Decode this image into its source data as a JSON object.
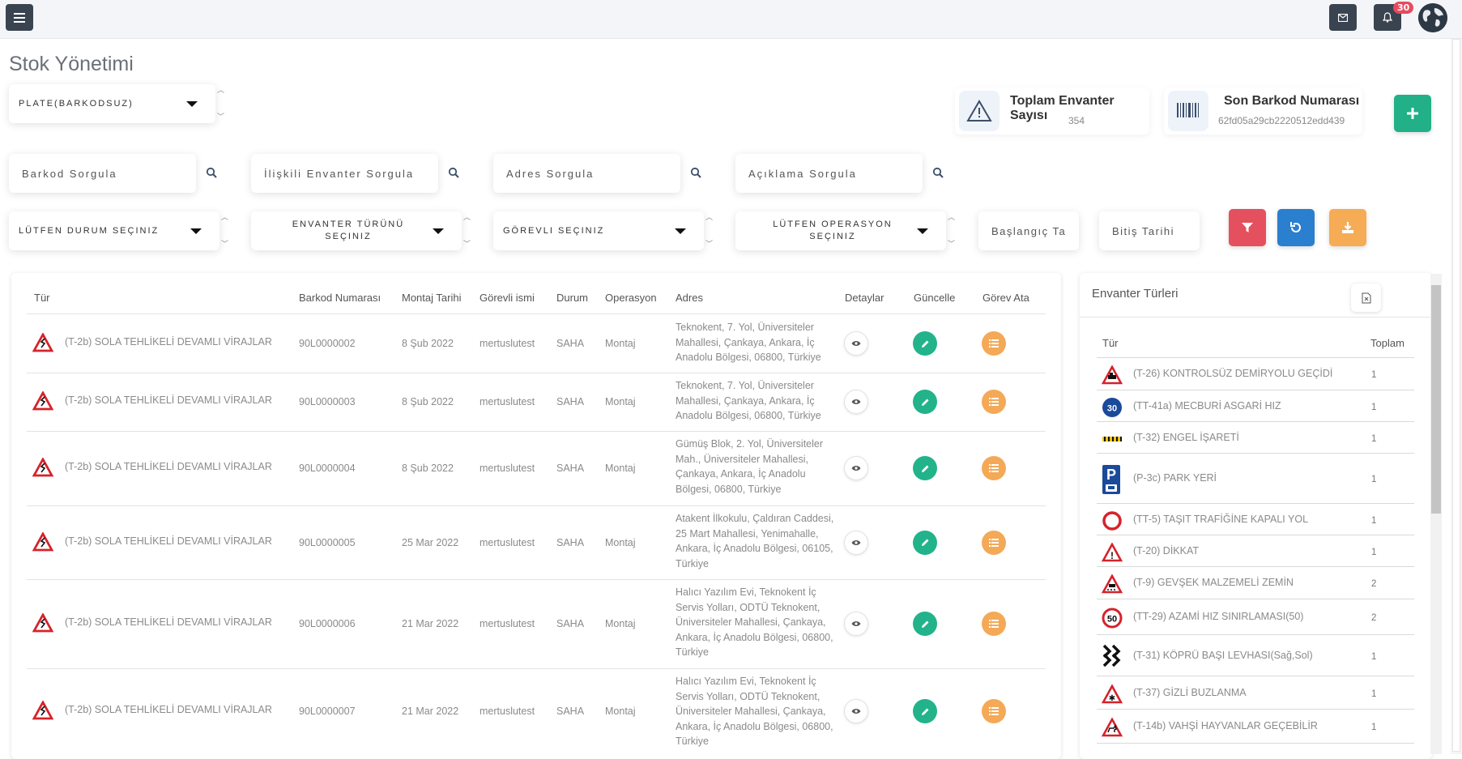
{
  "header": {
    "notification_count": "30"
  },
  "page_title": "Stok Yönetimi",
  "filters": {
    "plate_select": "PLATE(BARKODSUZ)",
    "durum_select": "LÜTFEN DURUM SEÇINIZ",
    "envanter_turu_select": "ENVANTER TÜRÜNÜ SEÇINIZ",
    "gorevli_select": "GÖREVLI SEÇINIZ",
    "operasyon_select": "LÜTFEN OPERASYON SEÇINIZ",
    "barkod_placeholder": "Barkod Sorgula",
    "iliskili_placeholder": "İlişkili Envanter Sorgula",
    "adres_placeholder": "Adres Sorgula",
    "aciklama_placeholder": "Açıklama Sorgula",
    "baslangic_placeholder": "Başlangıç Ta",
    "bitis_placeholder": "Bitiş Tarihi"
  },
  "stats": {
    "total_title": "Toplam Envanter Sayısı",
    "total_value": "354",
    "barcode_title": "Son Barkod Numarası",
    "barcode_value": "62fd05a29cb2220512edd439"
  },
  "colors": {
    "add": "#21b087",
    "filter": "#e5505f",
    "reset": "#2a7fce",
    "download": "#f5ac55"
  },
  "table": {
    "headers": [
      "Tür",
      "Barkod Numarası",
      "Montaj Tarihi",
      "Görevli ismi",
      "Durum",
      "Operasyon",
      "Adres",
      "Detaylar",
      "Güncelle",
      "Görev Ata"
    ],
    "rows": [
      {
        "tur": "(T-2b) SOLA TEHLİKELİ DEVAMLI VİRAJLAR",
        "barkod": "90L0000002",
        "tarih": "8 Şub 2022",
        "gorevli": "mertuslutest",
        "durum": "SAHA",
        "operasyon": "Montaj",
        "adres": "Teknokent, 7. Yol, Üniversiteler Mahallesi, Çankaya, Ankara, İç Anadolu Bölgesi, 06800, Türkiye"
      },
      {
        "tur": "(T-2b) SOLA TEHLİKELİ DEVAMLI VİRAJLAR",
        "barkod": "90L0000003",
        "tarih": "8 Şub 2022",
        "gorevli": "mertuslutest",
        "durum": "SAHA",
        "operasyon": "Montaj",
        "adres": "Teknokent, 7. Yol, Üniversiteler Mahallesi, Çankaya, Ankara, İç Anadolu Bölgesi, 06800, Türkiye"
      },
      {
        "tur": "(T-2b) SOLA TEHLİKELİ DEVAMLI VİRAJLAR",
        "barkod": "90L0000004",
        "tarih": "8 Şub 2022",
        "gorevli": "mertuslutest",
        "durum": "SAHA",
        "operasyon": "Montaj",
        "adres": "Gümüş Blok, 2. Yol, Üniversiteler Mah., Üniversiteler Mahallesi, Çankaya, Ankara, İç Anadolu Bölgesi, 06800, Türkiye"
      },
      {
        "tur": "(T-2b) SOLA TEHLİKELİ DEVAMLI VİRAJLAR",
        "barkod": "90L0000005",
        "tarih": "25 Mar 2022",
        "gorevli": "mertuslutest",
        "durum": "SAHA",
        "operasyon": "Montaj",
        "adres": "Atakent İlkokulu, Çaldıran Caddesi, 25 Mart Mahallesi, Yenimahalle, Ankara, İç Anadolu Bölgesi, 06105, Türkiye"
      },
      {
        "tur": "(T-2b) SOLA TEHLİKELİ DEVAMLI VİRAJLAR",
        "barkod": "90L0000006",
        "tarih": "21 Mar 2022",
        "gorevli": "mertuslutest",
        "durum": "SAHA",
        "operasyon": "Montaj",
        "adres": "Halıcı Yazılım Evi, Teknokent İç Servis Yolları, ODTÜ Teknokent, Üniversiteler Mahallesi, Çankaya, Ankara, İç Anadolu Bölgesi, 06800, Türkiye"
      },
      {
        "tur": "(T-2b) SOLA TEHLİKELİ DEVAMLI VİRAJLAR",
        "barkod": "90L0000007",
        "tarih": "21 Mar 2022",
        "gorevli": "mertuslutest",
        "durum": "SAHA",
        "operasyon": "Montaj",
        "adres": "Halıcı Yazılım Evi, Teknokent İç Servis Yolları, ODTÜ Teknokent, Üniversiteler Mahallesi, Çankaya, Ankara, İç Anadolu Bölgesi, 06800, Türkiye"
      }
    ]
  },
  "inventory_types": {
    "title": "Envanter Türleri",
    "headers": [
      "Tür",
      "Toplam"
    ],
    "items": [
      {
        "icon": "level-crossing-sign-icon",
        "label": "(T-26) KONTROLSÜZ DEMİRYOLU GEÇİDİ",
        "count": "1"
      },
      {
        "icon": "min-speed-sign-icon",
        "label": "(TT-41a) MECBURİ ASGARİ HIZ",
        "count": "1",
        "sign_text": "30"
      },
      {
        "icon": "obstacle-marker-icon",
        "label": "(T-32) ENGEL İŞARETİ",
        "count": "1"
      },
      {
        "icon": "parking-sign-icon",
        "label": "(P-3c) PARK YERİ",
        "count": "1",
        "sign_text": "P"
      },
      {
        "icon": "closed-road-sign-icon",
        "label": "(TT-5) TAŞIT TRAFİĞİNE KAPALI YOL",
        "count": "1"
      },
      {
        "icon": "warning-sign-icon",
        "label": "(T-20) DİKKAT",
        "count": "1",
        "sign_text": "!"
      },
      {
        "icon": "loose-gravel-sign-icon",
        "label": "(T-9) GEVŞEK MALZEMELİ ZEMİN",
        "count": "2"
      },
      {
        "icon": "speed-limit-sign-icon",
        "label": "(TT-29) AZAMİ HIZ SINIRLAMASI(50)",
        "count": "2",
        "sign_text": "50"
      },
      {
        "icon": "bridge-head-sign-icon",
        "label": "(T-31) KÖPRÜ BAŞI LEVHASI(Sağ,Sol)",
        "count": "1"
      },
      {
        "icon": "ice-sign-icon",
        "label": "(T-37) GİZLİ BUZLANMA",
        "count": "1",
        "sign_text": "✱"
      },
      {
        "icon": "wild-animals-sign-icon",
        "label": "(T-14b) VAHŞİ HAYVANLAR GEÇEBİLİR",
        "count": "1"
      }
    ]
  }
}
